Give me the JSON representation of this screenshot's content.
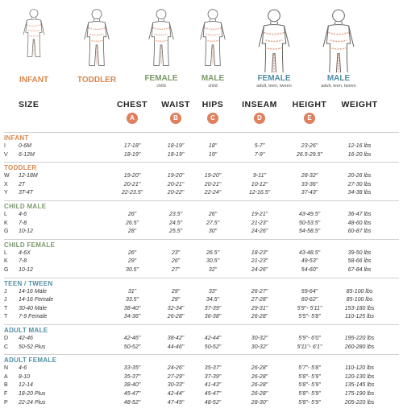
{
  "colors": {
    "orange": "#d8874f",
    "green": "#7a9a6a",
    "teal": "#4f8ea3",
    "badge": "#e07f5d"
  },
  "figures": [
    {
      "label": "INFANT",
      "sub": "",
      "color": "#d8874f"
    },
    {
      "label": "TODDLER",
      "sub": "",
      "color": "#d8874f"
    },
    {
      "label": "FEMALE",
      "sub": "child",
      "color": "#7a9a6a"
    },
    {
      "label": "MALE",
      "sub": "child",
      "color": "#7a9a6a"
    },
    {
      "label": "FEMALE",
      "sub": "adult, teen, tween",
      "color": "#4f8ea3"
    },
    {
      "label": "MALE",
      "sub": "adult, teen, tween",
      "color": "#4f8ea3"
    }
  ],
  "headers": [
    "SIZE",
    "CHEST",
    "WAIST",
    "HIPS",
    "INSEAM",
    "HEIGHT",
    "WEIGHT"
  ],
  "badges": [
    "A",
    "B",
    "C",
    "D",
    "E"
  ],
  "sections": [
    {
      "title": "INFANT",
      "color": "#d8874f",
      "rows": [
        {
          "code": "I",
          "size": "0-6M",
          "chest": "17-18\"",
          "waist": "18-19\"",
          "hips": "18\"",
          "inseam": "5-7\"",
          "height": "23-26\"",
          "weight": "12-16 lbs"
        },
        {
          "code": "V",
          "size": "6-12M",
          "chest": "18-19\"",
          "waist": "18-19\"",
          "hips": "19\"",
          "inseam": "7-9\"",
          "height": "26.5-29.5\"",
          "weight": "16-20 lbs"
        }
      ]
    },
    {
      "title": "TODDLER",
      "color": "#d8874f",
      "rows": [
        {
          "code": "W",
          "size": "12-18M",
          "chest": "19-20\"",
          "waist": "19-20\"",
          "hips": "19-20\"",
          "inseam": "9-11\"",
          "height": "28-32\"",
          "weight": "20-26 lbs"
        },
        {
          "code": "X",
          "size": "2T",
          "chest": "20-21\"",
          "waist": "20-21\"",
          "hips": "20-21\"",
          "inseam": "10-12\"",
          "height": "33-36\"",
          "weight": "27-30 lbs"
        },
        {
          "code": "Y",
          "size": "3T-4T",
          "chest": "22-23.5\"",
          "waist": "20-22\"",
          "hips": "22-24\"",
          "inseam": "12-16.5\"",
          "height": "37-43\"",
          "weight": "34-38 lbs"
        }
      ]
    },
    {
      "title": "CHILD MALE",
      "color": "#7a9a6a",
      "rows": [
        {
          "code": "L",
          "size": "4-6",
          "chest": "26\"",
          "waist": "23.5\"",
          "hips": "26\"",
          "inseam": "19-21\"",
          "height": "43-49.5\"",
          "weight": "36-47 lbs"
        },
        {
          "code": "K",
          "size": "7-8",
          "chest": "26.5\"",
          "waist": "24.5\"",
          "hips": "27.5\"",
          "inseam": "21-23\"",
          "height": "50-53.5\"",
          "weight": "48-60 lbs"
        },
        {
          "code": "G",
          "size": "10-12",
          "chest": "28\"",
          "waist": "25.5\"",
          "hips": "30\"",
          "inseam": "24-26\"",
          "height": "54-58.5\"",
          "weight": "60-87 lbs"
        }
      ]
    },
    {
      "title": "CHILD FEMALE",
      "color": "#7a9a6a",
      "rows": [
        {
          "code": "L",
          "size": "4-6X",
          "chest": "26\"",
          "waist": "23\"",
          "hips": "26.5\"",
          "inseam": "18-23\"",
          "height": "43-48.5\"",
          "weight": "39-50 lbs"
        },
        {
          "code": "K",
          "size": "7-8",
          "chest": "29\"",
          "waist": "26\"",
          "hips": "30.5\"",
          "inseam": "21-23\"",
          "height": "49-53\"",
          "weight": "58-66 lbs"
        },
        {
          "code": "G",
          "size": "10-12",
          "chest": "30.5\"",
          "waist": "27\"",
          "hips": "32\"",
          "inseam": "24-26\"",
          "height": "54-60\"",
          "weight": "67-84 lbs"
        }
      ]
    },
    {
      "title": "TEEN / TWEEN",
      "color": "#4f8ea3",
      "rows": [
        {
          "code": "J",
          "size": "14-16 Male",
          "chest": "31\"",
          "waist": "29\"",
          "hips": "33\"",
          "inseam": "26-27\"",
          "height": "59-64\"",
          "weight": "85-100 lbs"
        },
        {
          "code": "J",
          "size": "14-16 Female",
          "chest": "33.5\"",
          "waist": "29\"",
          "hips": "34.5\"",
          "inseam": "27-28\"",
          "height": "60-62\"",
          "weight": "85-100 lbs"
        },
        {
          "code": "T",
          "size": "30-40 Male",
          "chest": "38-40\"",
          "waist": "32-34\"",
          "hips": "37-39\"",
          "inseam": "29-31\"",
          "height": "5'9\"- 5'11\"",
          "weight": "153-180 lbs"
        },
        {
          "code": "T",
          "size": "7-9 Female",
          "chest": "34-36\"",
          "waist": "26-28\"",
          "hips": "36-38\"",
          "inseam": "26-28\"",
          "height": "5'5\"- 5'8\"",
          "weight": "110-125 lbs"
        }
      ]
    },
    {
      "title": "ADULT MALE",
      "color": "#4f8ea3",
      "rows": [
        {
          "code": "D",
          "size": "42-46",
          "chest": "42-46\"",
          "waist": "38-42\"",
          "hips": "42-44\"",
          "inseam": "30-32\"",
          "height": "5'9\"- 6'0\"",
          "weight": "195-220 lbs"
        },
        {
          "code": "C",
          "size": "50-52 Plus",
          "chest": "50-52\"",
          "waist": "44-46\"",
          "hips": "50-52\"",
          "inseam": "30-32\"",
          "height": "5'11\"- 6'1\"",
          "weight": "260-280 lbs"
        }
      ]
    },
    {
      "title": "ADULT FEMALE",
      "color": "#4f8ea3",
      "rows": [
        {
          "code": "N",
          "size": "4-6",
          "chest": "33-35\"",
          "waist": "24-26\"",
          "hips": "35-37\"",
          "inseam": "26-28\"",
          "height": "5'7\"- 5'8\"",
          "weight": "110-120 lbs"
        },
        {
          "code": "A",
          "size": "8-10",
          "chest": "35-37\"",
          "waist": "27-29\"",
          "hips": "37-39\"",
          "inseam": "26-28\"",
          "height": "5'8\"- 5'9\"",
          "weight": "120-130 lbs"
        },
        {
          "code": "B",
          "size": "12-14",
          "chest": "38-40\"",
          "waist": "30-33\"",
          "hips": "41-43\"",
          "inseam": "26-28\"",
          "height": "5'8\"- 5'9\"",
          "weight": "135-145 lbs"
        },
        {
          "code": "F",
          "size": "18-20 Plus",
          "chest": "45-47\"",
          "waist": "42-44\"",
          "hips": "45-47\"",
          "inseam": "26-28\"",
          "height": "5'8\"- 5'9\"",
          "weight": "175-190 lbs"
        },
        {
          "code": "P",
          "size": "22-24 Plus",
          "chest": "48-52\"",
          "waist": "47-49\"",
          "hips": "48-52\"",
          "inseam": "28-30\"",
          "height": "5'8\"- 5'9\"",
          "weight": "205-220 lbs"
        }
      ]
    }
  ]
}
